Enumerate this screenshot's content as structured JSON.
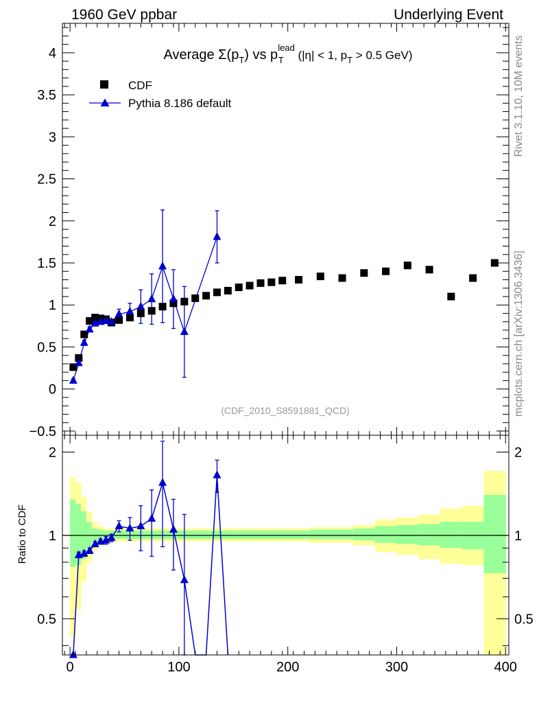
{
  "header": {
    "left": "1960 GeV ppbar",
    "right": "Underlying Event"
  },
  "side_labels": {
    "rivet": "Rivet 3.1.10,  10M events",
    "mcplots": "mcplots.cern.ch [arXiv:1306.3436]"
  },
  "colors": {
    "data": "#000000",
    "mc": "#0000cc",
    "band_inner": "#99ff99",
    "band_outer": "#ffff99"
  },
  "chart_data": [
    {
      "type": "scatter",
      "panel": "main",
      "title": "Average Σ(p_T) vs p_T^lead (|η| < 1, p_T > 0.5 GeV)",
      "title_parts": {
        "pre": "Average ",
        "sigma": "Σ(p",
        "sub1": "T",
        "mid": ") vs p",
        "sup": "lead",
        "sub2": "T",
        "post1": " (|η| < 1, p",
        "sub3": "T",
        "post2": " > 0.5 GeV)"
      },
      "analysis_id": "(CDF_2010_S8591881_QCD)",
      "xlabel": "",
      "ylabel": "",
      "xlim": [
        -7,
        403
      ],
      "ylim": [
        -0.55,
        4.35
      ],
      "yticks": [
        -0.5,
        0,
        0.5,
        1,
        1.5,
        2,
        2.5,
        3,
        3.5,
        4
      ],
      "ytick_labels": [
        "−0.5",
        "0",
        "0.5",
        "1",
        "1.5",
        "2",
        "2.5",
        "3",
        "3.5",
        "4"
      ],
      "legend_position": "top-left",
      "series": [
        {
          "name": "CDF",
          "marker": "square",
          "x": [
            3,
            8,
            13,
            18,
            23,
            28,
            33,
            38,
            45,
            55,
            65,
            75,
            85,
            95,
            105,
            115,
            125,
            135,
            145,
            155,
            165,
            175,
            185,
            195,
            210,
            230,
            250,
            270,
            290,
            310,
            330,
            350,
            370,
            390
          ],
          "y": [
            0.26,
            0.37,
            0.65,
            0.81,
            0.85,
            0.84,
            0.83,
            0.79,
            0.82,
            0.85,
            0.9,
            0.93,
            0.98,
            1.02,
            1.04,
            1.08,
            1.11,
            1.15,
            1.17,
            1.21,
            1.23,
            1.26,
            1.27,
            1.29,
            1.3,
            1.34,
            1.32,
            1.38,
            1.4,
            1.47,
            1.42,
            1.1,
            1.32,
            1.5
          ]
        },
        {
          "name": "Pythia 8.186 default",
          "marker": "triangle",
          "x": [
            3,
            8,
            13,
            18,
            23,
            28,
            33,
            38,
            45,
            55,
            65,
            75,
            85,
            95,
            105,
            135
          ],
          "y": [
            0.1,
            0.31,
            0.55,
            0.71,
            0.78,
            0.8,
            0.81,
            0.8,
            0.89,
            0.92,
            0.98,
            1.07,
            1.46,
            1.07,
            0.68,
            1.81
          ],
          "err": [
            0.02,
            0.03,
            0.03,
            0.03,
            0.03,
            0.03,
            0.03,
            0.03,
            0.06,
            0.1,
            0.2,
            0.3,
            0.67,
            0.35,
            0.54,
            0.31
          ]
        }
      ]
    },
    {
      "type": "line",
      "panel": "ratio",
      "ylabel": "Ratio to CDF",
      "xlabel": "",
      "xlim": [
        -7,
        403
      ],
      "ylim": [
        0.37,
        2.3
      ],
      "yticks": [
        0.5,
        1,
        2
      ],
      "ytick_labels": [
        "0.5",
        "1",
        "2"
      ],
      "xticks": [
        0,
        100,
        200,
        300,
        400
      ],
      "xtick_labels": [
        "0",
        "100",
        "200",
        "300",
        "400"
      ],
      "reference": 1,
      "band_edges": [
        0,
        5,
        10,
        15,
        20,
        25,
        30,
        35,
        40,
        50,
        60,
        70,
        80,
        90,
        100,
        110,
        120,
        130,
        140,
        150,
        160,
        170,
        180,
        190,
        200,
        220,
        240,
        260,
        280,
        300,
        320,
        340,
        360,
        380,
        400
      ],
      "band_inner_hi": [
        1.35,
        1.3,
        1.22,
        1.12,
        1.06,
        1.05,
        1.04,
        1.04,
        1.04,
        1.04,
        1.04,
        1.04,
        1.04,
        1.04,
        1.04,
        1.04,
        1.04,
        1.04,
        1.04,
        1.04,
        1.04,
        1.04,
        1.04,
        1.04,
        1.04,
        1.05,
        1.05,
        1.06,
        1.08,
        1.09,
        1.1,
        1.12,
        1.12,
        1.4
      ],
      "band_inner_lo": [
        0.77,
        0.78,
        0.82,
        0.9,
        0.95,
        0.96,
        0.97,
        0.97,
        0.97,
        0.97,
        0.97,
        0.97,
        0.97,
        0.97,
        0.97,
        0.97,
        0.97,
        0.97,
        0.97,
        0.97,
        0.97,
        0.97,
        0.97,
        0.97,
        0.97,
        0.97,
        0.97,
        0.96,
        0.94,
        0.93,
        0.92,
        0.9,
        0.89,
        0.73
      ],
      "band_outer_hi": [
        1.62,
        1.55,
        1.38,
        1.22,
        1.12,
        1.08,
        1.06,
        1.06,
        1.06,
        1.06,
        1.06,
        1.06,
        1.06,
        1.06,
        1.06,
        1.06,
        1.06,
        1.06,
        1.06,
        1.06,
        1.06,
        1.06,
        1.06,
        1.06,
        1.06,
        1.07,
        1.07,
        1.09,
        1.14,
        1.16,
        1.19,
        1.25,
        1.28,
        1.71
      ],
      "band_outer_lo": [
        0.43,
        0.54,
        0.68,
        0.8,
        0.88,
        0.92,
        0.94,
        0.94,
        0.95,
        0.95,
        0.95,
        0.95,
        0.95,
        0.95,
        0.95,
        0.95,
        0.95,
        0.95,
        0.95,
        0.95,
        0.95,
        0.95,
        0.95,
        0.95,
        0.95,
        0.94,
        0.94,
        0.92,
        0.87,
        0.85,
        0.82,
        0.79,
        0.78,
        0.3
      ],
      "series": [
        {
          "name": "Pythia 8.186 default / CDF",
          "marker": "triangle",
          "x": [
            3,
            8,
            13,
            18,
            23,
            28,
            33,
            38,
            45,
            55,
            65,
            75,
            85,
            95,
            105,
            115,
            125,
            135,
            145
          ],
          "y": [
            0.35,
            0.85,
            0.86,
            0.88,
            0.93,
            0.95,
            0.96,
            0.98,
            1.08,
            1.06,
            1.08,
            1.15,
            1.55,
            1.05,
            0.69,
            0.15,
            0.15,
            1.65,
            0.15
          ],
          "err": [
            0.02,
            0.02,
            0.02,
            0.02,
            0.02,
            0.02,
            0.03,
            0.03,
            0.05,
            0.1,
            0.2,
            0.31,
            0.64,
            0.3,
            0.5,
            0,
            0,
            0.22,
            0
          ],
          "visible": [
            true,
            true,
            true,
            true,
            true,
            true,
            true,
            true,
            true,
            true,
            true,
            true,
            true,
            true,
            true,
            false,
            false,
            true,
            false
          ]
        }
      ]
    }
  ]
}
